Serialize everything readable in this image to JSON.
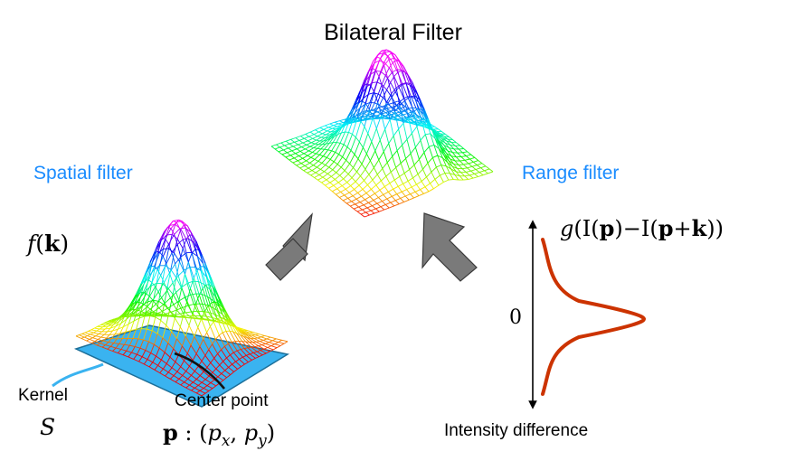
{
  "title": "Bilateral Filter",
  "spatial": {
    "label": "Spatial filter",
    "func": {
      "name": "f",
      "open": "(",
      "arg": "k",
      "close": ")"
    }
  },
  "range": {
    "label": "Range filter",
    "func": {
      "name": "g",
      "p1": "(I(",
      "a": "p",
      "p2": ")−I(",
      "b": "p",
      "p3": "+",
      "c": "k",
      "p4": "))"
    },
    "axis_zero": "0",
    "axis_label": "Intensity difference"
  },
  "kernel": {
    "label": "Kernel",
    "symbol": "S"
  },
  "center": {
    "label": "Center point",
    "eq": {
      "p": "p",
      "colon": " : (",
      "px": "p",
      "xsub": "x",
      "comma": ", ",
      "py": "p",
      "ysub": "y",
      "close": ")"
    }
  },
  "colors": {
    "accent_text": "#1a8cff",
    "kernel_fill": "#3ab3f0",
    "arrow_fill": "#7a7a7a",
    "gaussian_curve": "#cc3300"
  }
}
